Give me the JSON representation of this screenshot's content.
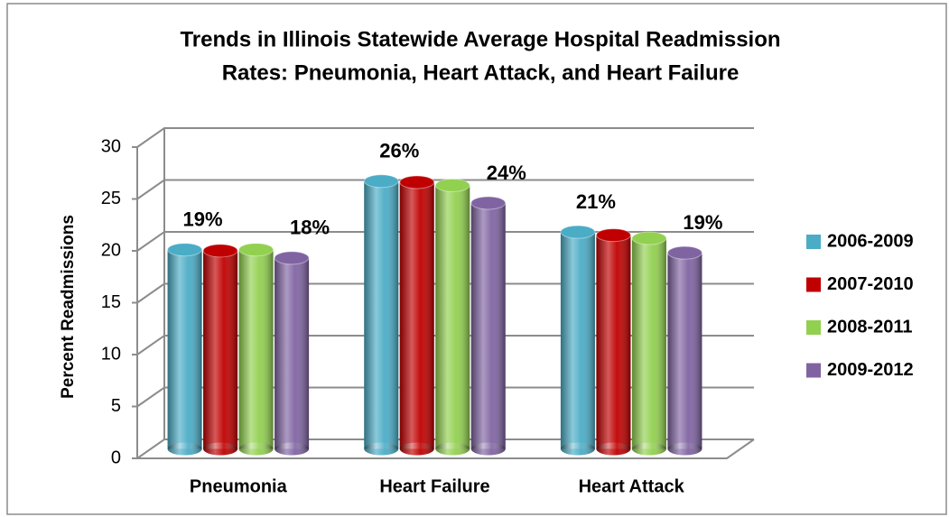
{
  "chart_data": {
    "type": "bar3d",
    "title": [
      "Trends in Illinois Statewide Average Hospital Readmission",
      "Rates:  Pneumonia, Heart Attack, and Heart Failure"
    ],
    "ylabel": "Percent Readmissions",
    "categories": [
      "Pneumonia",
      "Heart Failure",
      "Heart Attack"
    ],
    "series": [
      {
        "name": "2006-2009",
        "color": "#4bacc6",
        "values": [
          19.2,
          25.8,
          20.9
        ],
        "value_labels": [
          "19%",
          "26%",
          "21%"
        ]
      },
      {
        "name": "2007-2010",
        "color": "#c00000",
        "values": [
          19.1,
          25.7,
          20.6
        ],
        "value_labels": [
          null,
          null,
          null
        ]
      },
      {
        "name": "2008-2011",
        "color": "#92d050",
        "values": [
          19.2,
          25.4,
          20.3
        ],
        "value_labels": [
          null,
          null,
          null
        ]
      },
      {
        "name": "2009-2012",
        "color": "#8064a2",
        "values": [
          18.4,
          23.7,
          18.9
        ],
        "value_labels": [
          "18%",
          "24%",
          "19%"
        ]
      }
    ],
    "ylim": [
      0,
      30
    ],
    "yticks": [
      0,
      5,
      10,
      15,
      20,
      25,
      30
    ],
    "grid": true,
    "legend": "right"
  }
}
